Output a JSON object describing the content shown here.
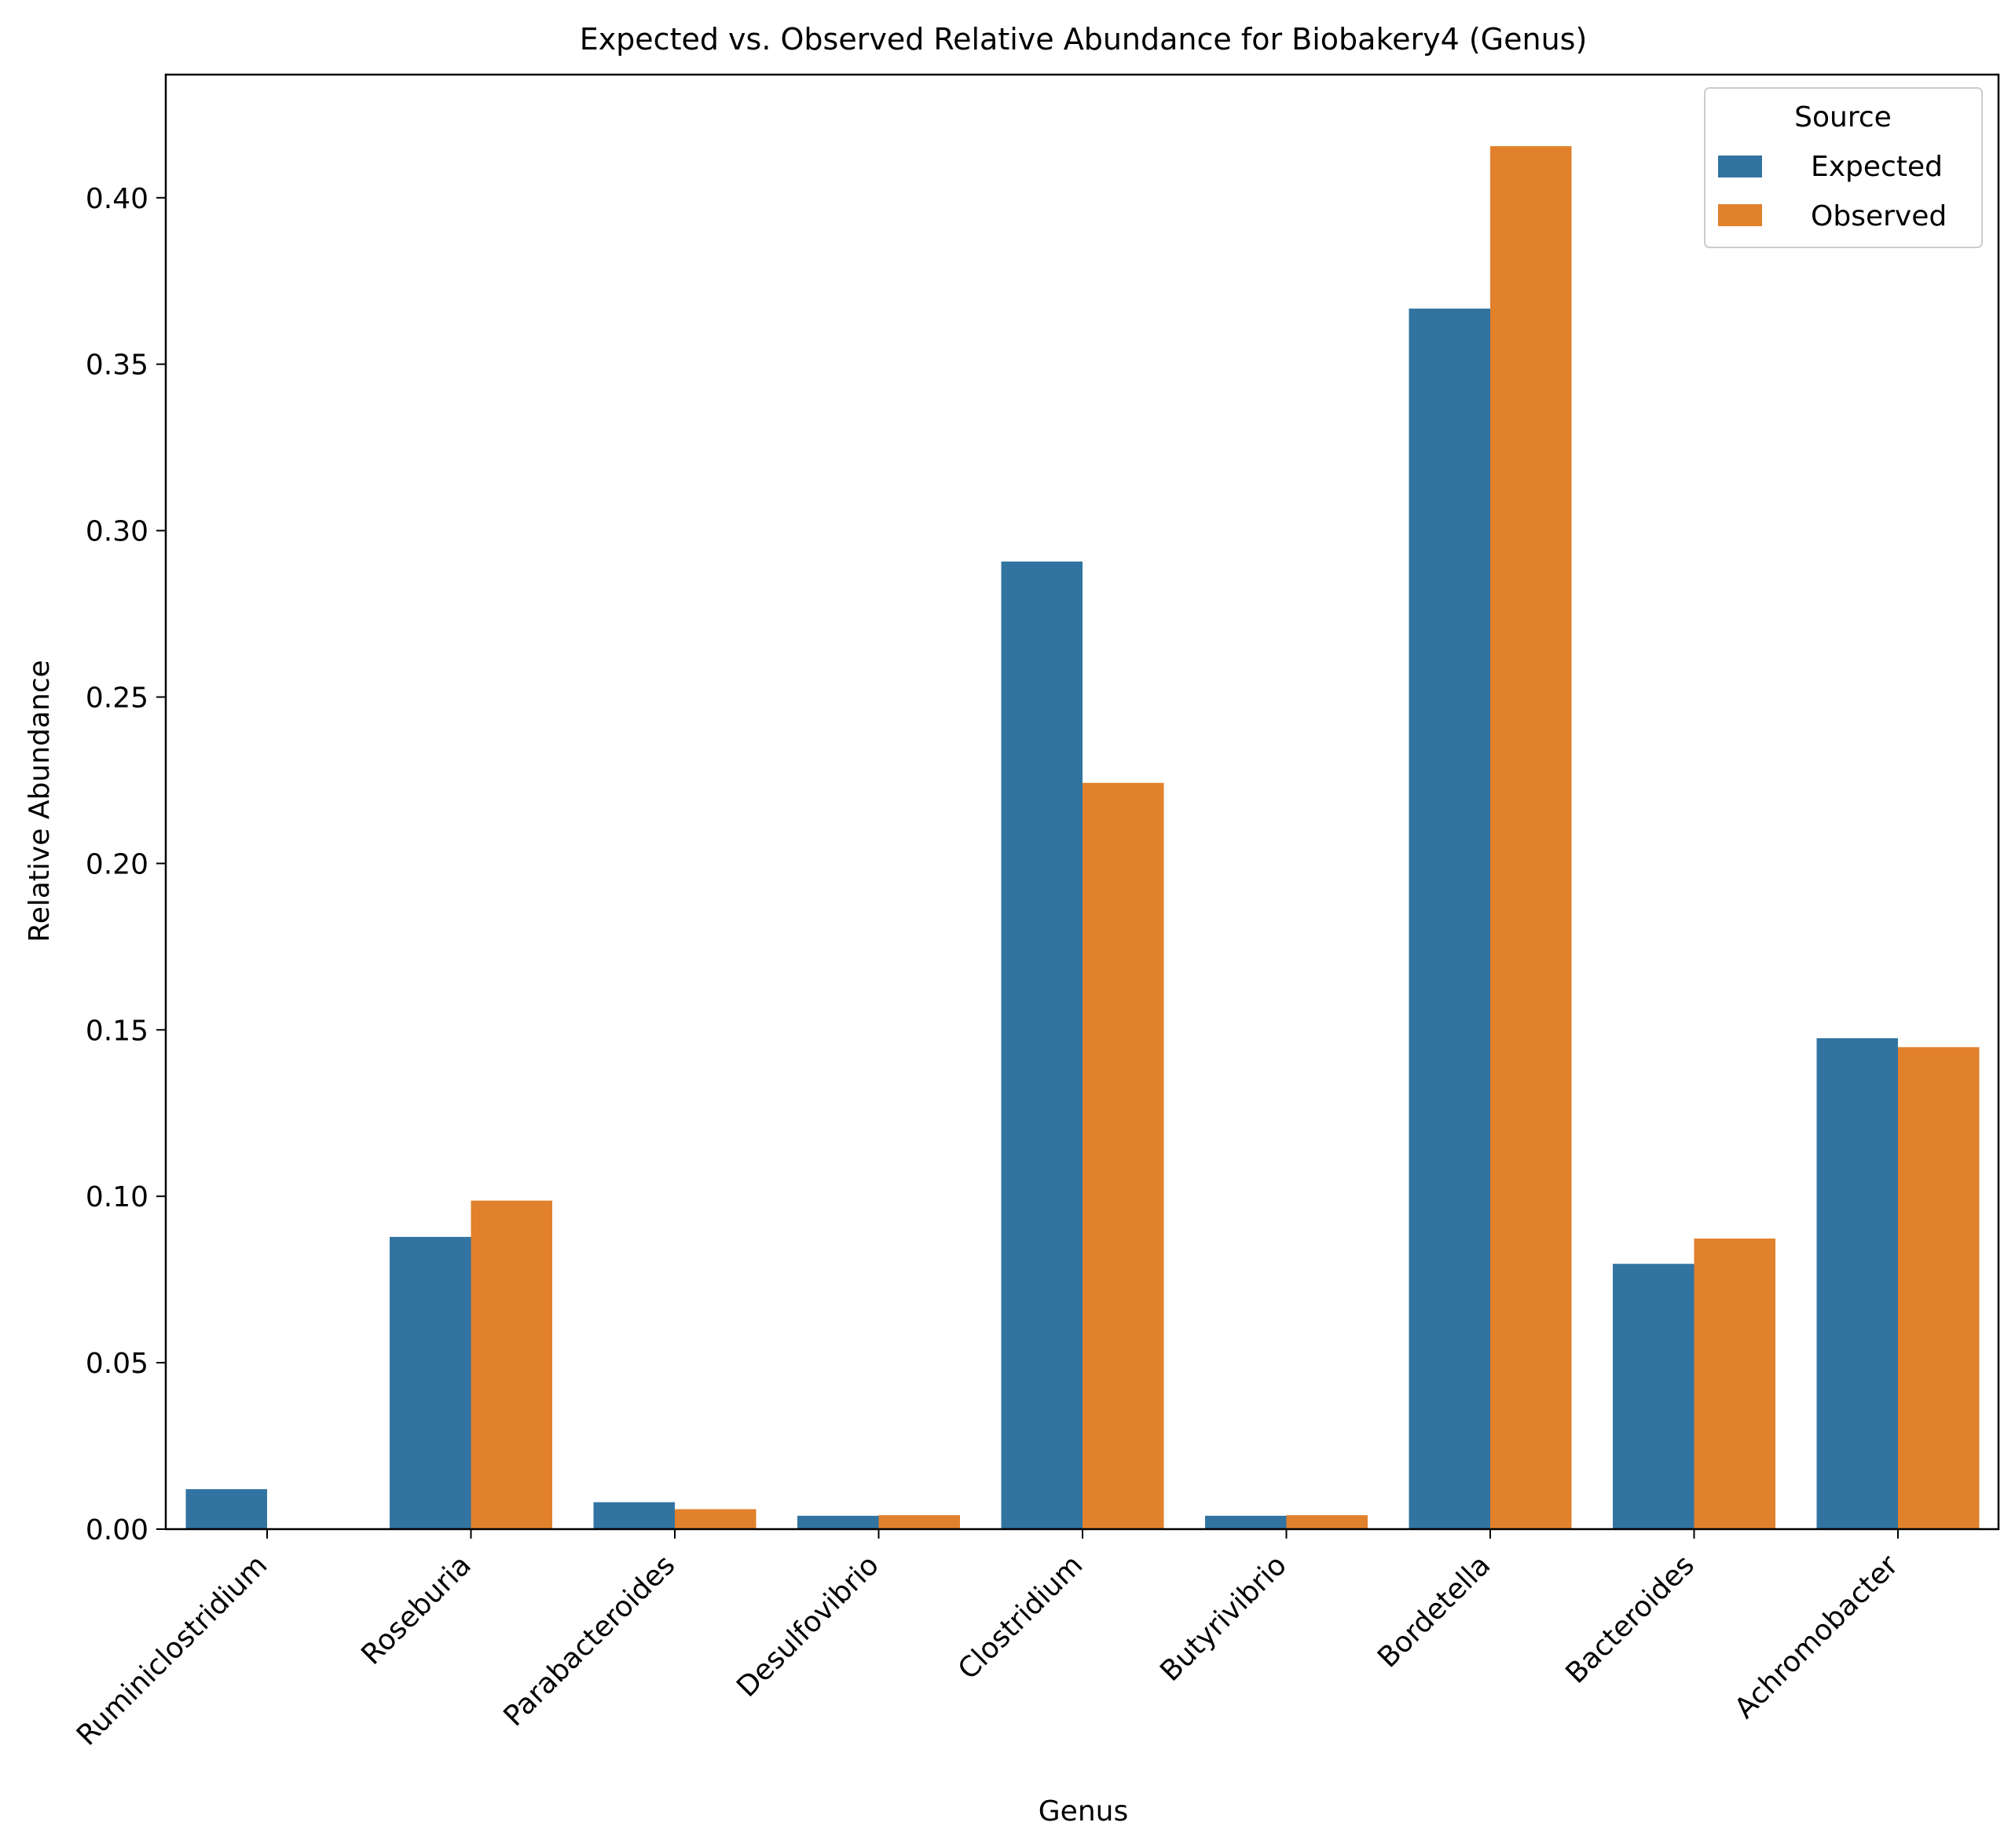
{
  "chart_data": {
    "type": "bar",
    "title": "Expected vs. Observed Relative Abundance for Biobakery4 (Genus)",
    "xlabel": "Genus",
    "ylabel": "Relative Abundance",
    "ylim": [
      0,
      0.437
    ],
    "yticks": [
      "0.00",
      "0.05",
      "0.10",
      "0.15",
      "0.20",
      "0.25",
      "0.30",
      "0.35",
      "0.40"
    ],
    "grid": false,
    "legend": {
      "title": "Source",
      "placement": "top-right"
    },
    "categories": [
      "Ruminiclostridium",
      "Roseburia",
      "Parabacteroides",
      "Desulfovibrio",
      "Clostridium",
      "Butyrivibrio",
      "Bordetella",
      "Bacteroides",
      "Achromobacter"
    ],
    "series": [
      {
        "name": "Expected",
        "color": "#3274a1",
        "values": [
          0.012,
          0.0878,
          0.0081,
          0.004,
          0.2907,
          0.004,
          0.3667,
          0.0797,
          0.1475
        ]
      },
      {
        "name": "Observed",
        "color": "#e1812c",
        "values": [
          0.0,
          0.0987,
          0.006,
          0.0042,
          0.2242,
          0.0042,
          0.4155,
          0.0873,
          0.1448
        ]
      }
    ]
  }
}
